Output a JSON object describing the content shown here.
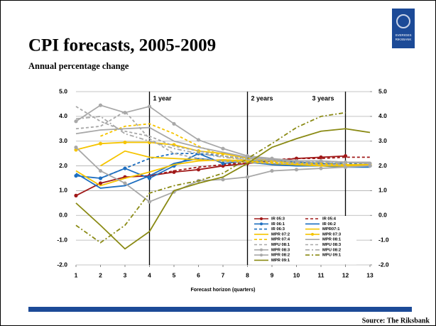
{
  "chart_data": {
    "type": "line",
    "title": "CPI forecasts, 2005-2009",
    "subtitle": "Annual percentage change",
    "x_label": "Forecast horizon (quarters)",
    "source": "Source: The Riksbank",
    "logo_text": [
      "SVERIGES",
      "RIKSBANK"
    ],
    "x": [
      1,
      2,
      3,
      4,
      5,
      6,
      7,
      8,
      9,
      10,
      11,
      12,
      13
    ],
    "xlim": [
      1,
      13
    ],
    "xticks": [
      1,
      2,
      3,
      4,
      5,
      6,
      7,
      8,
      9,
      10,
      11,
      12,
      13
    ],
    "ylim": [
      -2,
      5
    ],
    "yticks": [
      {
        "value": -2,
        "label": "-2.0"
      },
      {
        "value": -1,
        "label": "-1.0"
      },
      {
        "value": 0,
        "label": "0.0"
      },
      {
        "value": 1,
        "label": "1.0"
      },
      {
        "value": 2,
        "label": "2.0"
      },
      {
        "value": 3,
        "label": "3.0"
      },
      {
        "value": 4,
        "label": "4.0"
      },
      {
        "value": 5,
        "label": "5.0"
      }
    ],
    "y2lim": [
      -2,
      5
    ],
    "y2ticks": [
      {
        "value": -2,
        "label": "-2.0"
      },
      {
        "value": -1,
        "label": "-1.0"
      },
      {
        "value": 0,
        "label": "0.0"
      },
      {
        "value": 1,
        "label": "1.0"
      },
      {
        "value": 2,
        "label": "2.0"
      },
      {
        "value": 3,
        "label": "3.0"
      },
      {
        "value": 4,
        "label": "4.0"
      },
      {
        "value": 5,
        "label": "5.0"
      }
    ],
    "grid": true,
    "annotations": [
      {
        "x": 4,
        "label": "1 year"
      },
      {
        "x": 8,
        "label": "2 years"
      },
      {
        "x": 12,
        "label": "3 years"
      }
    ],
    "series": [
      {
        "name": "IR 05:3",
        "color": "#a01818",
        "style": "solid",
        "marker": true,
        "values": [
          0.8,
          1.3,
          1.55,
          1.6,
          1.75,
          1.85,
          2.0,
          2.1,
          2.2,
          2.3,
          2.35,
          2.4,
          null
        ]
      },
      {
        "name": "IR 05:4",
        "color": "#a01818",
        "style": "dashed",
        "marker": false,
        "values": [
          null,
          null,
          null,
          1.6,
          1.8,
          1.95,
          2.05,
          2.15,
          2.25,
          2.3,
          2.3,
          2.35,
          2.35
        ]
      },
      {
        "name": "IR 06:1",
        "color": "#1f6fc0",
        "style": "solid",
        "marker": true,
        "values": [
          1.6,
          1.5,
          1.9,
          1.5,
          2.0,
          2.5,
          2.1,
          2.2,
          2.2,
          2.15,
          2.1,
          2.05,
          2.0
        ]
      },
      {
        "name": "IR 06:2",
        "color": "#1f6fc0",
        "style": "solid",
        "marker": false,
        "values": [
          1.7,
          1.1,
          1.2,
          1.6,
          2.1,
          2.3,
          2.2,
          2.15,
          2.05,
          2.0,
          2.0,
          1.95,
          1.95
        ]
      },
      {
        "name": "IR 06:3",
        "color": "#1f6fc0",
        "style": "dashed",
        "marker": false,
        "values": [
          null,
          1.5,
          1.9,
          2.3,
          2.5,
          2.5,
          2.4,
          2.3,
          2.2,
          2.15,
          2.1,
          2.1,
          2.1
        ]
      },
      {
        "name": "MPR07:1",
        "color": "#f5c400",
        "style": "solid",
        "marker": false,
        "values": [
          null,
          2.0,
          2.6,
          2.35,
          2.3,
          2.25,
          2.2,
          2.15,
          2.1,
          2.05,
          2.05,
          2.0,
          2.0
        ]
      },
      {
        "name": "MPR 07:2",
        "color": "#f5c400",
        "style": "solid",
        "marker": false,
        "values": [
          1.8,
          1.2,
          1.5,
          1.75,
          2.05,
          2.2,
          2.25,
          2.2,
          2.1,
          2.05,
          2.0,
          2.0,
          2.0
        ]
      },
      {
        "name": "MPR 07:3",
        "color": "#f5c400",
        "style": "solid",
        "marker": true,
        "values": [
          2.65,
          2.9,
          2.95,
          2.95,
          2.85,
          2.6,
          2.5,
          2.3,
          2.2,
          2.1,
          2.05,
          2.05,
          2.05
        ]
      },
      {
        "name": "MPR 07:4",
        "color": "#f5c400",
        "style": "dashed",
        "marker": false,
        "values": [
          null,
          3.2,
          3.6,
          3.7,
          3.3,
          2.8,
          2.4,
          2.2,
          2.15,
          2.1,
          2.1,
          2.05,
          2.05
        ]
      },
      {
        "name": "MPR 08:1",
        "color": "#a8a8a8",
        "style": "solid",
        "marker": false,
        "values": [
          3.3,
          3.45,
          3.5,
          3.55,
          3.0,
          2.75,
          2.55,
          2.35,
          2.25,
          2.2,
          2.2,
          2.15,
          2.15
        ]
      },
      {
        "name": "MPU 08:1",
        "color": "#a8a8a8",
        "style": "dashed",
        "marker": false,
        "values": [
          4.4,
          3.8,
          3.4,
          3.2,
          2.8,
          2.6,
          2.4,
          2.3,
          2.25,
          2.2,
          2.2,
          2.15,
          null
        ]
      },
      {
        "name": "MPU 08:3",
        "color": "#a8a8a8",
        "style": "dashed",
        "marker": false,
        "values": [
          3.5,
          3.6,
          4.2,
          3.1,
          2.5,
          2.3,
          2.2,
          2.15,
          2.1,
          2.1,
          2.05,
          2.05,
          null
        ]
      },
      {
        "name": "MPR 08:3",
        "color": "#a8a8a8",
        "style": "solid",
        "marker": true,
        "values": [
          2.75,
          1.8,
          1.3,
          0.55,
          0.95,
          1.4,
          1.45,
          1.55,
          1.8,
          1.85,
          1.9,
          1.95,
          2.0
        ]
      },
      {
        "name": "MPU 08:2",
        "color": "#a8a8a8",
        "style": "dashdot",
        "marker": false,
        "values": [
          3.9,
          4.0,
          3.3,
          3.0,
          2.7,
          2.5,
          2.35,
          2.25,
          2.2,
          2.15,
          2.15,
          2.1,
          null
        ]
      },
      {
        "name": "MPR 08:2",
        "color": "#a8a8a8",
        "style": "solid",
        "marker": true,
        "values": [
          3.8,
          4.45,
          4.15,
          4.4,
          3.7,
          3.05,
          2.7,
          2.4,
          2.3,
          2.2,
          2.2,
          2.15,
          2.1
        ]
      },
      {
        "name": "MPU 09:1",
        "color": "#8a8a14",
        "style": "dashdot",
        "marker": false,
        "values": [
          -0.4,
          -1.1,
          -0.4,
          0.9,
          1.2,
          1.4,
          1.7,
          2.3,
          2.9,
          3.55,
          4.0,
          4.15,
          null
        ]
      },
      {
        "name": "MPR 09:1",
        "color": "#8a8a14",
        "style": "solid",
        "marker": false,
        "values": [
          0.5,
          -0.4,
          -1.35,
          -0.65,
          1.0,
          1.3,
          1.55,
          2.1,
          2.75,
          3.1,
          3.4,
          3.5,
          3.35
        ]
      }
    ]
  }
}
